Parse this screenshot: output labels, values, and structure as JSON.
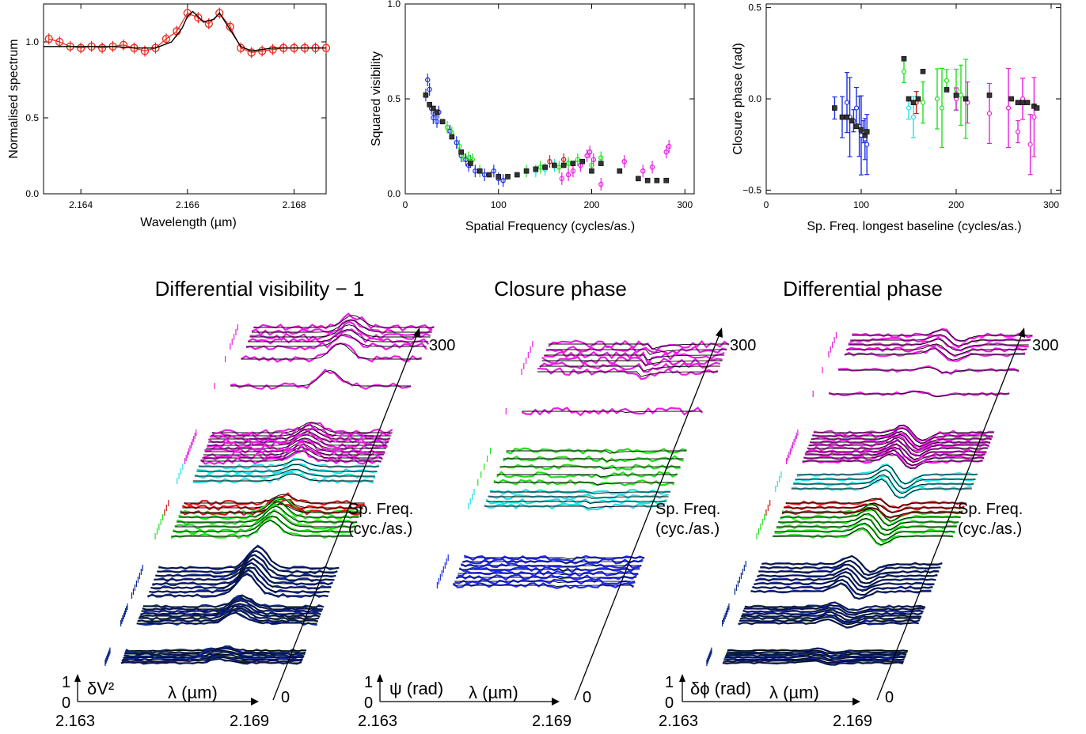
{
  "colors": {
    "spectrum": "#e8271b",
    "model": "#000000",
    "blue": "#1c2ee8",
    "green": "#1fe01a",
    "magenta": "#e81ee0",
    "cyan": "#1ee0e6",
    "red": "#d01616",
    "navy": "#0d2a8a"
  },
  "top": {
    "spectrum": {
      "ylabel": "Normalised spectrum",
      "xlabel": "Wavelength (µm)",
      "xticks": [
        "2.164",
        "2.166",
        "2.168"
      ],
      "yticks": [
        "0.0",
        "0.5",
        "1.0"
      ]
    },
    "visibility": {
      "ylabel": "Squared visibility",
      "xlabel": "Spatial Frequency (cycles/as.)",
      "xticks": [
        "0",
        "100",
        "200",
        "300"
      ],
      "yticks": [
        "0.0",
        "0.5",
        "1.0"
      ]
    },
    "closure": {
      "ylabel": "Closure phase (rad)",
      "xlabel": "Sp. Freq. longest baseline (cycles/as.)",
      "xticks": [
        "0",
        "100",
        "200",
        "300"
      ],
      "yticks": [
        "−0.5",
        "0.0",
        "0.5"
      ]
    }
  },
  "bottom": {
    "panels": [
      {
        "title": "Differential visibility − 1",
        "axis": "δV²"
      },
      {
        "title": "Closure phase",
        "axis": "ψ (rad)"
      },
      {
        "title": "Differential phase",
        "axis": "δϕ (rad)"
      }
    ],
    "lambda_label": "λ (µm)",
    "lambda_min": "2.163",
    "lambda_max": "2.169",
    "freq_max": "300",
    "freq_min": "0",
    "scale_one": "1",
    "scale_zero": "0",
    "sf_label_line1": "Sp. Freq.",
    "sf_label_line2": "(cyc./as.)"
  },
  "chart_data": [
    {
      "type": "line",
      "title": "",
      "xlabel": "Wavelength (µm)",
      "ylabel": "Normalised spectrum",
      "xlim": [
        2.1633,
        2.1686
      ],
      "ylim": [
        0.0,
        1.25
      ],
      "series": [
        {
          "x": [
            2.1634,
            2.1636,
            2.1638,
            2.164,
            2.1642,
            2.1644,
            2.1646,
            2.1648,
            2.165,
            2.1652,
            2.1654,
            2.1656,
            2.1658,
            2.166,
            2.1662,
            2.1664,
            2.1666,
            2.1668,
            2.167,
            2.1672,
            2.1674,
            2.1676,
            2.1678,
            2.168,
            2.1682,
            2.1684,
            2.1686
          ],
          "y": [
            1.02,
            1.0,
            0.97,
            0.96,
            0.97,
            0.96,
            0.97,
            0.98,
            0.96,
            0.94,
            0.96,
            1.02,
            1.07,
            1.19,
            1.16,
            1.12,
            1.19,
            1.1,
            0.96,
            0.93,
            0.94,
            0.95,
            0.96,
            0.96,
            0.96,
            0.96,
            0.96
          ]
        }
      ],
      "model": {
        "x": [
          2.1633,
          2.164,
          2.1646,
          2.165,
          2.1654,
          2.1657,
          2.1659,
          2.166,
          2.1661,
          2.1663,
          2.1665,
          2.1666,
          2.1668,
          2.167,
          2.1672,
          2.1676,
          2.1686
        ],
        "y": [
          0.97,
          0.97,
          0.97,
          0.96,
          0.96,
          1.0,
          1.09,
          1.17,
          1.2,
          1.13,
          1.15,
          1.19,
          1.08,
          0.97,
          0.94,
          0.96,
          0.96
        ]
      }
    },
    {
      "type": "scatter",
      "title": "",
      "xlabel": "Spatial Frequency (cycles/as.)",
      "ylabel": "Squared visibility",
      "xlim": [
        0,
        310
      ],
      "ylim": [
        0,
        1.0
      ],
      "series": [
        {
          "color": "blue",
          "x": [
            22,
            24,
            26,
            28,
            30,
            32,
            34,
            36,
            48,
            55,
            60,
            65,
            68,
            70,
            75,
            85,
            95,
            100,
            105
          ],
          "y": [
            0.52,
            0.6,
            0.55,
            0.45,
            0.4,
            0.42,
            0.38,
            0.43,
            0.33,
            0.27,
            0.2,
            0.18,
            0.15,
            0.17,
            0.12,
            0.1,
            0.12,
            0.08,
            0.07
          ]
        },
        {
          "color": "green",
          "x": [
            45,
            50,
            58,
            62,
            68,
            72,
            80,
            130,
            145,
            165,
            175,
            185,
            200,
            210
          ],
          "y": [
            0.35,
            0.32,
            0.25,
            0.2,
            0.19,
            0.18,
            0.12,
            0.12,
            0.14,
            0.14,
            0.16,
            0.18,
            0.15,
            0.19
          ]
        },
        {
          "color": "magenta",
          "x": [
            168,
            175,
            180,
            188,
            195,
            198,
            202,
            210,
            235,
            255,
            265,
            280,
            283
          ],
          "y": [
            0.08,
            0.1,
            0.12,
            0.15,
            0.2,
            0.22,
            0.18,
            0.05,
            0.17,
            0.12,
            0.14,
            0.22,
            0.25
          ]
        },
        {
          "color": "cyan",
          "x": [
            140,
            150,
            160
          ],
          "y": [
            0.12,
            0.13,
            0.15
          ]
        },
        {
          "color": "red",
          "x": [
            155,
            170
          ],
          "y": [
            0.17,
            0.18
          ]
        },
        {
          "color": "model",
          "x": [
            22,
            26,
            30,
            34,
            40,
            50,
            60,
            70,
            80,
            90,
            100,
            110,
            120,
            130,
            140,
            150,
            160,
            170,
            180,
            190,
            200,
            210,
            230,
            250,
            260,
            270,
            280
          ],
          "y": [
            0.52,
            0.47,
            0.45,
            0.43,
            0.38,
            0.3,
            0.22,
            0.16,
            0.12,
            0.1,
            0.09,
            0.09,
            0.1,
            0.12,
            0.13,
            0.14,
            0.15,
            0.15,
            0.16,
            0.17,
            0.12,
            0.16,
            0.12,
            0.08,
            0.07,
            0.07,
            0.07
          ]
        }
      ]
    },
    {
      "type": "scatter",
      "title": "",
      "xlabel": "Sp. Freq. longest baseline (cycles/as.)",
      "ylabel": "Closure phase (rad)",
      "xlim": [
        0,
        310
      ],
      "ylim": [
        -0.52,
        0.52
      ],
      "series": [
        {
          "color": "blue",
          "x": [
            72,
            80,
            85,
            88,
            92,
            95,
            98,
            100,
            102,
            104,
            106
          ],
          "y": [
            -0.05,
            -0.1,
            -0.02,
            -0.1,
            -0.12,
            -0.05,
            -0.15,
            -0.2,
            -0.18,
            -0.22,
            -0.25
          ]
        },
        {
          "color": "cyan",
          "x": [
            150,
            155
          ],
          "y": [
            -0.05,
            -0.1
          ]
        },
        {
          "color": "red",
          "x": [
            158
          ],
          "y": [
            -0.02
          ]
        },
        {
          "color": "green",
          "x": [
            145,
            165,
            180,
            185,
            190,
            200,
            205,
            210
          ],
          "y": [
            0.15,
            -0.02,
            0.0,
            -0.05,
            0.1,
            0.05,
            0.02,
            0.0
          ]
        },
        {
          "color": "magenta",
          "x": [
            200,
            212,
            235,
            255,
            265,
            270,
            278,
            282
          ],
          "y": [
            0.0,
            -0.02,
            -0.08,
            -0.05,
            -0.18,
            0.0,
            -0.25,
            -0.1
          ]
        },
        {
          "color": "model",
          "x": [
            72,
            80,
            85,
            90,
            95,
            100,
            104,
            106,
            145,
            150,
            155,
            160,
            165,
            190,
            200,
            210,
            235,
            258,
            265,
            270,
            275,
            282,
            285
          ],
          "y": [
            -0.05,
            -0.1,
            -0.1,
            -0.12,
            -0.15,
            -0.17,
            -0.2,
            -0.18,
            0.22,
            0.0,
            -0.02,
            0.0,
            0.15,
            0.05,
            0.02,
            0.0,
            0.02,
            0.0,
            -0.02,
            -0.02,
            -0.02,
            -0.04,
            -0.05
          ]
        }
      ]
    }
  ]
}
